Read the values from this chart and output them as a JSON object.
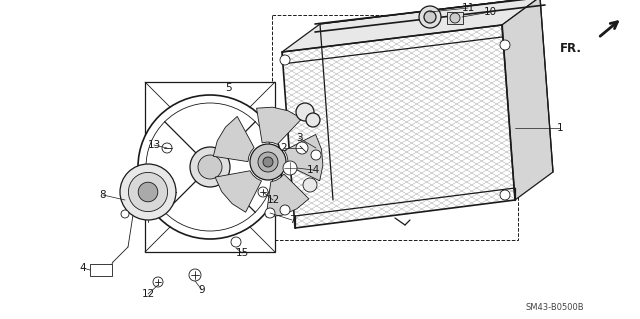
{
  "bg_color": "#ffffff",
  "line_color": "#1a1a1a",
  "figure_width": 6.4,
  "figure_height": 3.19,
  "dpi": 100,
  "watermark": "SM43-B0500B",
  "direction_label": "FR."
}
